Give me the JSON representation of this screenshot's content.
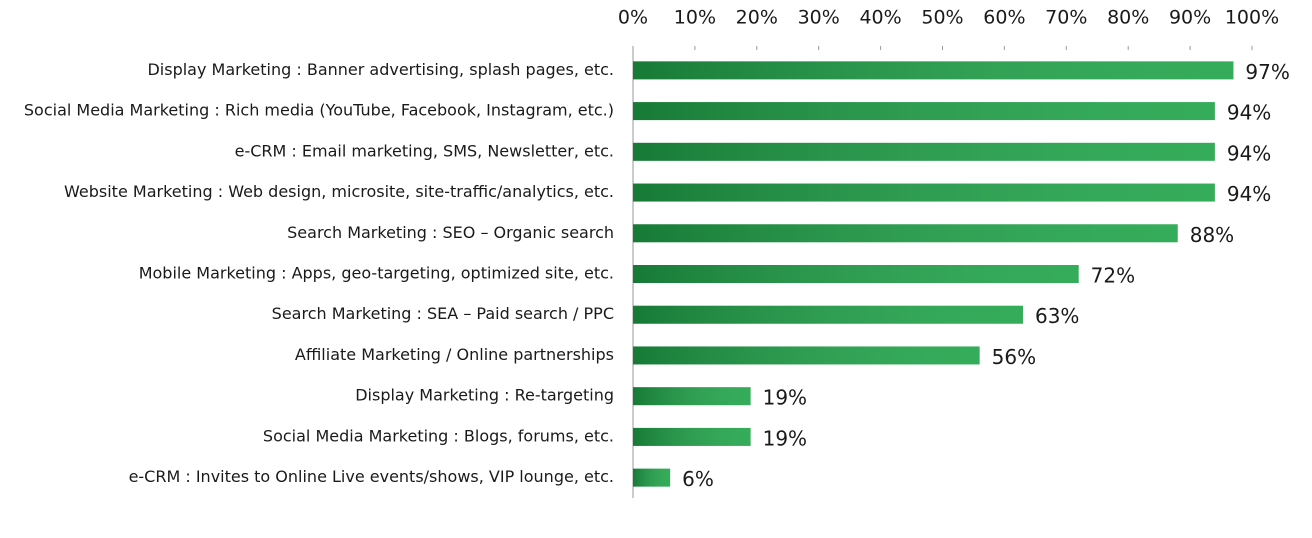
{
  "chart_data": {
    "type": "bar",
    "orientation": "horizontal",
    "categories": [
      "Display Marketing : Banner advertising, splash pages, etc.",
      "Social Media Marketing : Rich media (YouTube, Facebook, Instagram, etc.)",
      "e-CRM : Email marketing, SMS, Newsletter, etc.",
      "Website Marketing : Web design, microsite, site-traffic/analytics, etc.",
      "Search Marketing : SEO – Organic search",
      "Mobile Marketing : Apps, geo-targeting, optimized site, etc.",
      "Search Marketing : SEA – Paid search / PPC",
      "Affiliate Marketing / Online partnerships",
      "Display Marketing : Re-targeting",
      "Social Media Marketing : Blogs, forums, etc.",
      "e-CRM : Invites to Online Live events/shows, VIP lounge, etc."
    ],
    "values": [
      97,
      94,
      94,
      94,
      88,
      72,
      63,
      56,
      19,
      19,
      6
    ],
    "value_labels": [
      "97%",
      "94%",
      "94%",
      "94%",
      "88%",
      "72%",
      "63%",
      "56%",
      "19%",
      "19%",
      "6%"
    ],
    "color": "#1ea348",
    "xlim": [
      0,
      100
    ],
    "xticks": [
      {
        "value": 0,
        "label": "0%"
      },
      {
        "value": 10,
        "label": "10%"
      },
      {
        "value": 20,
        "label": "20%"
      },
      {
        "value": 30,
        "label": "30%"
      },
      {
        "value": 40,
        "label": "40%"
      },
      {
        "value": 50,
        "label": "50%"
      },
      {
        "value": 60,
        "label": "60%"
      },
      {
        "value": 70,
        "label": "70%"
      },
      {
        "value": 80,
        "label": "80%"
      },
      {
        "value": 90,
        "label": "90%"
      },
      {
        "value": 100,
        "label": "100%"
      }
    ]
  }
}
